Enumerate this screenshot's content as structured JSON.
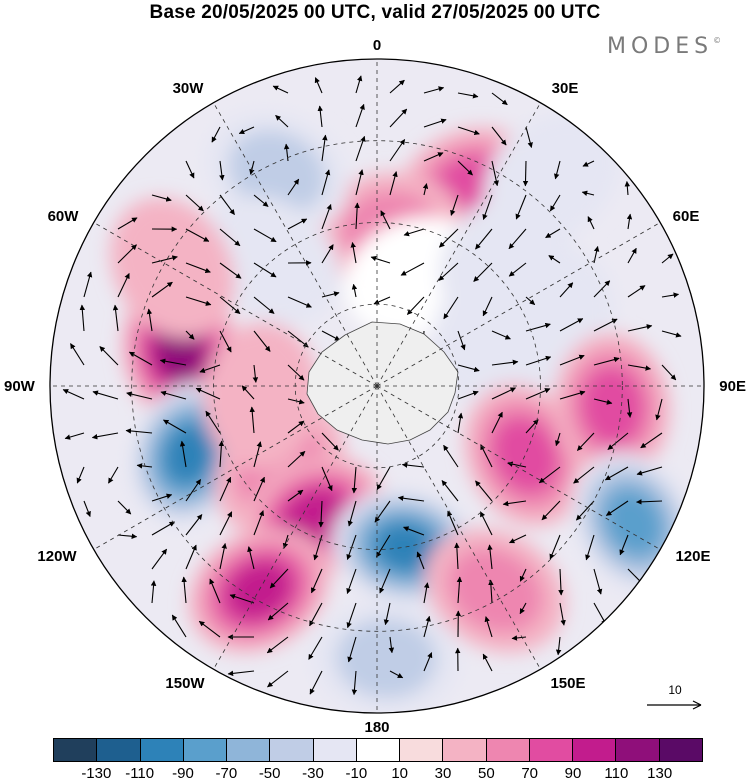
{
  "title": "Base 20/05/2025 00 UTC, valid 27/05/2025 00 UTC",
  "brand": "MODES",
  "brand_mark": "©",
  "longitude_labels": {
    "top": "0",
    "bottom": "180",
    "left": "90W",
    "right": "90E",
    "l30w": "30W",
    "l60w": "60W",
    "l120w": "120W",
    "l150w": "150W",
    "l30e": "30E",
    "l60e": "60E",
    "l120e": "120E",
    "l150e": "150E"
  },
  "reference_vector": {
    "value": "10"
  },
  "colorbar": {
    "colors": [
      "#203f5c",
      "#1e5f8f",
      "#2d82b8",
      "#5a9fcc",
      "#8fb5d9",
      "#c0cde6",
      "#e5e6f3",
      "#ffffff",
      "#f8dcdd",
      "#f4b3c4",
      "#ee86b0",
      "#e14ca1",
      "#c21c8d",
      "#8f0f7a",
      "#5a0a66"
    ],
    "ticks": [
      "-130",
      "-110",
      "-90",
      "-70",
      "-50",
      "-30",
      "-10",
      "10",
      "30",
      "50",
      "70",
      "90",
      "110",
      "130"
    ]
  },
  "anomaly_cells": [
    {
      "lon": 25,
      "lat": -30,
      "value": 70
    },
    {
      "lon": 5,
      "lat": -47,
      "value": 50
    },
    {
      "lon": -25,
      "lat": -25,
      "value": -50
    },
    {
      "lon": -40,
      "lat": -45,
      "value": -30
    },
    {
      "lon": 20,
      "lat": -58,
      "value": -10
    },
    {
      "lon": 45,
      "lat": -40,
      "value": -30
    },
    {
      "lon": 65,
      "lat": -55,
      "value": -30
    },
    {
      "lon": 70,
      "lat": -38,
      "value": -30
    },
    {
      "lon": -80,
      "lat": -35,
      "value": 110
    },
    {
      "lon": -60,
      "lat": -25,
      "value": 30
    },
    {
      "lon": -110,
      "lat": -35,
      "value": -110
    },
    {
      "lon": -130,
      "lat": -55,
      "value": 50
    },
    {
      "lon": -155,
      "lat": -50,
      "value": 90
    },
    {
      "lon": -150,
      "lat": -25,
      "value": 90
    },
    {
      "lon": 170,
      "lat": -45,
      "value": -110
    },
    {
      "lon": 178,
      "lat": -15,
      "value": -50
    },
    {
      "lon": 115,
      "lat": -45,
      "value": 70
    },
    {
      "lon": 95,
      "lat": -25,
      "value": 70
    },
    {
      "lon": 118,
      "lat": -10,
      "value": -90
    },
    {
      "lon": 150,
      "lat": -25,
      "value": 50
    },
    {
      "lon": 40,
      "lat": -15,
      "value": -30
    },
    {
      "lon": -95,
      "lat": -58,
      "value": 30
    }
  ]
}
